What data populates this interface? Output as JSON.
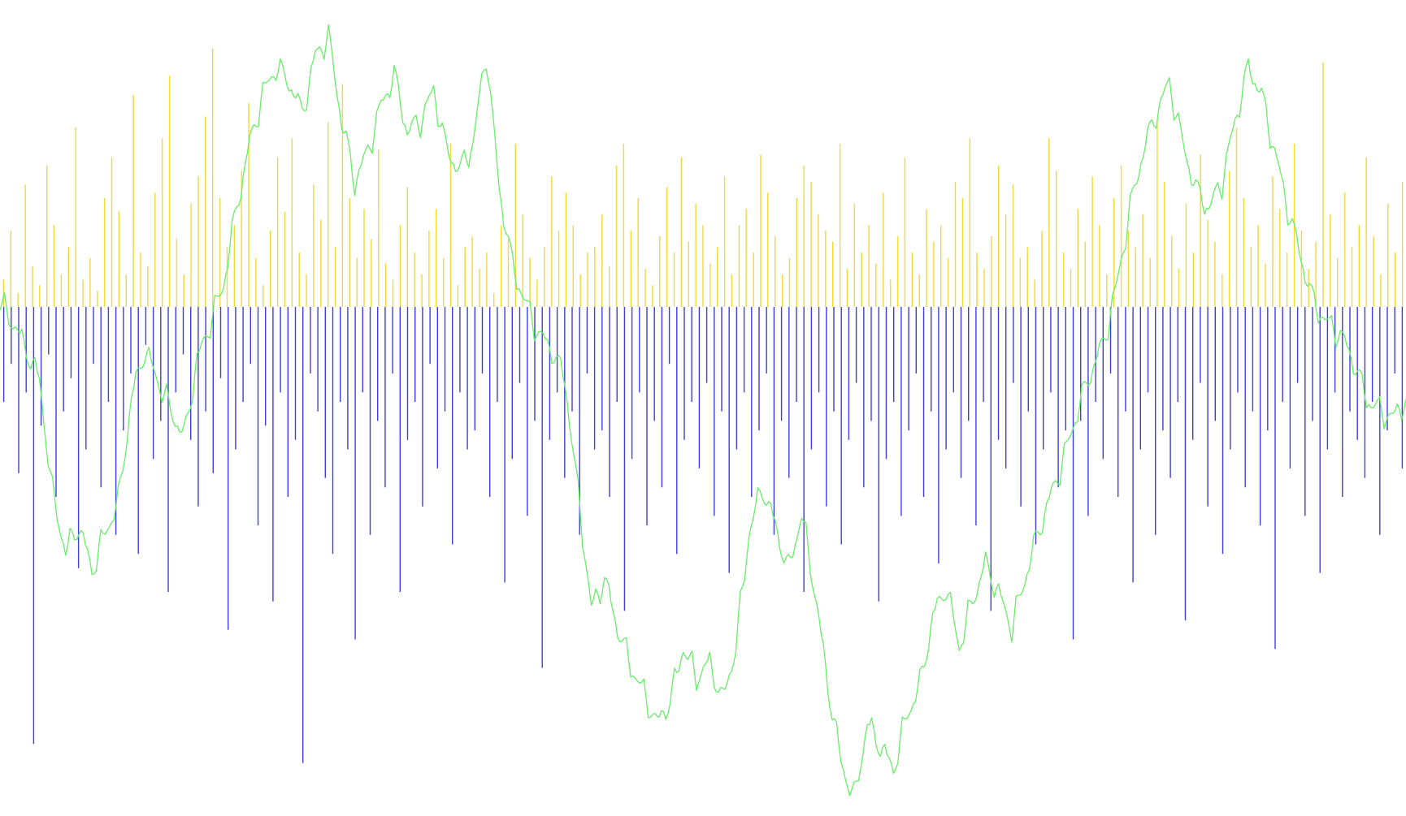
{
  "chart_data": {
    "type": "bar",
    "xlim": [
      0,
      1
    ],
    "ylim": [
      -1,
      1
    ],
    "grid": false,
    "legend": "none",
    "colors": {
      "background": "#ffffff",
      "positive_bars": "#f2d935",
      "negative_bars": "#3d3de0",
      "price_line": "#66ee66"
    },
    "series": [
      {
        "kind": "bar-positive",
        "values": [
          0.1,
          0.28,
          0.05,
          0.45,
          0.15,
          0.08,
          0.52,
          0.3,
          0.12,
          0.22,
          0.66,
          0.1,
          0.18,
          0.06,
          0.4,
          0.55,
          0.35,
          0.12,
          0.78,
          0.2,
          0.15,
          0.42,
          0.62,
          0.85,
          0.25,
          0.12,
          0.38,
          0.48,
          0.7,
          0.95,
          0.4,
          0.22,
          0.3,
          0.5,
          0.75,
          0.18,
          0.08,
          0.28,
          0.55,
          0.35,
          0.62,
          0.2,
          0.12,
          0.45,
          0.32,
          0.68,
          0.22,
          0.82,
          0.4,
          0.18,
          0.36,
          0.25,
          0.58,
          0.16,
          0.1,
          0.3,
          0.44,
          0.2,
          0.12,
          0.28,
          0.36,
          0.18,
          0.6,
          0.08,
          0.22,
          0.26,
          0.14,
          0.2,
          0.05,
          0.3,
          0.25,
          0.6,
          0.34,
          0.18,
          0.1,
          0.22,
          0.48,
          0.28,
          0.42,
          0.3,
          0.12,
          0.2,
          0.22,
          0.34,
          0.15,
          0.52,
          0.6,
          0.28,
          0.4,
          0.14,
          0.08,
          0.26,
          0.44,
          0.2,
          0.55,
          0.24,
          0.38,
          0.3,
          0.16,
          0.22,
          0.48,
          0.12,
          0.3,
          0.36,
          0.2,
          0.56,
          0.42,
          0.26,
          0.12,
          0.18,
          0.4,
          0.52,
          0.46,
          0.34,
          0.28,
          0.24,
          0.6,
          0.14,
          0.38,
          0.2,
          0.3,
          0.16,
          0.42,
          0.1,
          0.26,
          0.55,
          0.2,
          0.12,
          0.36,
          0.24,
          0.3,
          0.18,
          0.46,
          0.4,
          0.62,
          0.2,
          0.14,
          0.26,
          0.52,
          0.34,
          0.45,
          0.18,
          0.22,
          0.1,
          0.28,
          0.62,
          0.5,
          0.2,
          0.14,
          0.36,
          0.24,
          0.48,
          0.3,
          0.12,
          0.4,
          0.52,
          0.28,
          0.22,
          0.34,
          0.18,
          0.68,
          0.46,
          0.26,
          0.14,
          0.38,
          0.2,
          0.56,
          0.32,
          0.24,
          0.12,
          0.5,
          0.66,
          0.4,
          0.22,
          0.3,
          0.16,
          0.48,
          0.36,
          0.2,
          0.6,
          0.28,
          0.14,
          0.24,
          0.9,
          0.34,
          0.18,
          0.42,
          0.22,
          0.3,
          0.55,
          0.26,
          0.12,
          0.38,
          0.2,
          0.46
        ],
        "color": "#f2d935"
      },
      {
        "kind": "bar-negative",
        "values": [
          -0.2,
          -0.12,
          -0.35,
          -0.18,
          -0.92,
          -0.25,
          -0.1,
          -0.4,
          -0.22,
          -0.15,
          -0.55,
          -0.3,
          -0.12,
          -0.38,
          -0.2,
          -0.48,
          -0.26,
          -0.14,
          -0.52,
          -0.08,
          -0.32,
          -0.24,
          -0.6,
          -0.18,
          -0.1,
          -0.28,
          -0.42,
          -0.22,
          -0.35,
          -0.15,
          -0.68,
          -0.3,
          -0.2,
          -0.12,
          -0.46,
          -0.25,
          -0.62,
          -0.18,
          -0.4,
          -0.28,
          -0.96,
          -0.14,
          -0.22,
          -0.36,
          -0.52,
          -0.2,
          -0.3,
          -0.7,
          -0.18,
          -0.48,
          -0.24,
          -0.38,
          -0.14,
          -0.6,
          -0.28,
          -0.2,
          -0.42,
          -0.12,
          -0.34,
          -0.22,
          -0.5,
          -0.18,
          -0.3,
          -0.26,
          -0.14,
          -0.4,
          -0.2,
          -0.58,
          -0.32,
          -0.16,
          -0.44,
          -0.24,
          -0.76,
          -0.28,
          -0.18,
          -0.36,
          -0.22,
          -0.48,
          -0.14,
          -0.3,
          -0.26,
          -0.4,
          -0.2,
          -0.64,
          -0.32,
          -0.18,
          -0.46,
          -0.24,
          -0.38,
          -0.12,
          -0.52,
          -0.28,
          -0.2,
          -0.34,
          -0.16,
          -0.44,
          -0.22,
          -0.56,
          -0.3,
          -0.18,
          -0.4,
          -0.26,
          -0.14,
          -0.48,
          -0.24,
          -0.36,
          -0.2,
          -0.6,
          -0.3,
          -0.18,
          -0.42,
          -0.22,
          -0.5,
          -0.28,
          -0.16,
          -0.38,
          -0.24,
          -0.62,
          -0.32,
          -0.2,
          -0.44,
          -0.26,
          -0.14,
          -0.4,
          -0.22,
          -0.54,
          -0.3,
          -0.18,
          -0.36,
          -0.24,
          -0.46,
          -0.2,
          -0.64,
          -0.28,
          -0.34,
          -0.16,
          -0.42,
          -0.22,
          -0.5,
          -0.3,
          -0.18,
          -0.38,
          -0.26,
          -0.7,
          -0.24,
          -0.44,
          -0.2,
          -0.32,
          -0.14,
          -0.4,
          -0.22,
          -0.58,
          -0.3,
          -0.18,
          -0.48,
          -0.26,
          -0.36,
          -0.2,
          -0.66,
          -0.28,
          -0.16,
          -0.42,
          -0.24,
          -0.52,
          -0.3,
          -0.18,
          -0.38,
          -0.22,
          -0.46,
          -0.26,
          -0.72,
          -0.2,
          -0.34,
          -0.16,
          -0.44,
          -0.24,
          -0.56,
          -0.3,
          -0.18,
          -0.4,
          -0.22,
          -0.28,
          -0.36,
          -0.2,
          -0.48,
          -0.26,
          -0.14,
          -0.34
        ],
        "color": "#3d3de0"
      },
      {
        "kind": "price-line",
        "values": [
          0.3,
          0.25,
          0.18,
          0.1,
          -0.2,
          -0.35,
          -0.28,
          -0.4,
          -0.3,
          -0.22,
          0.05,
          0.18,
          0.1,
          0.02,
          -0.05,
          0.15,
          0.25,
          0.35,
          0.55,
          0.72,
          0.85,
          0.92,
          0.88,
          0.8,
          0.95,
          1.0,
          0.78,
          0.62,
          0.7,
          0.82,
          0.9,
          0.75,
          0.78,
          0.86,
          0.7,
          0.65,
          0.72,
          0.96,
          0.6,
          0.4,
          0.3,
          0.22,
          0.18,
          0.1,
          -0.2,
          -0.5,
          -0.42,
          -0.55,
          -0.65,
          -0.72,
          -0.8,
          -0.74,
          -0.6,
          -0.68,
          -0.64,
          -0.74,
          -0.6,
          -0.3,
          -0.18,
          -0.28,
          -0.4,
          -0.25,
          -0.45,
          -0.7,
          -0.9,
          -1.0,
          -0.8,
          -0.86,
          -0.92,
          -0.78,
          -0.7,
          -0.52,
          -0.44,
          -0.6,
          -0.48,
          -0.38,
          -0.46,
          -0.55,
          -0.42,
          -0.3,
          -0.2,
          -0.1,
          0.02,
          0.12,
          0.2,
          0.35,
          0.55,
          0.7,
          0.8,
          0.88,
          0.72,
          0.6,
          0.55,
          0.62,
          0.78,
          0.92,
          0.85,
          0.7,
          0.55,
          0.42,
          0.3,
          0.25,
          0.22,
          0.15,
          0.05,
          0.02,
          0.0,
          0.05
        ],
        "color": "#66ee66"
      }
    ]
  }
}
